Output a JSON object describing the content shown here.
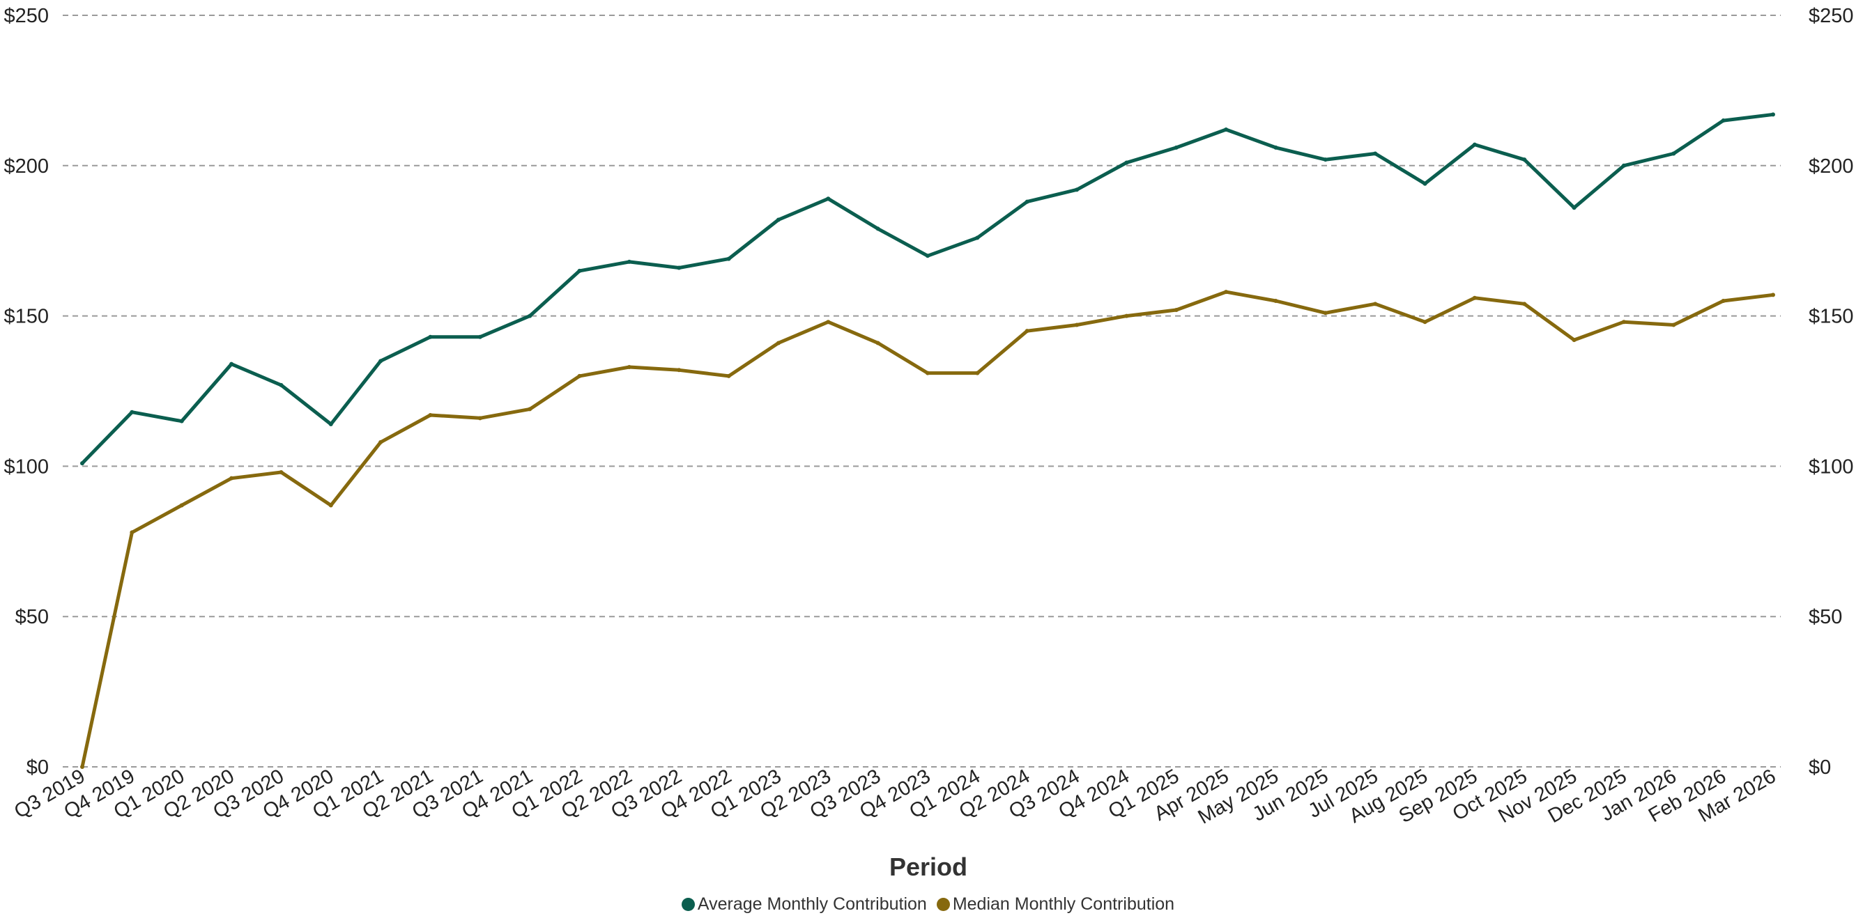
{
  "chart_data": {
    "type": "line",
    "title": "",
    "xlabel": "Period",
    "ylabel": "",
    "ylim": [
      0,
      250
    ],
    "y_ticks": [
      0,
      50,
      100,
      150,
      200,
      250
    ],
    "y_tick_labels": [
      "$0",
      "$50",
      "$100",
      "$150",
      "$200",
      "$250"
    ],
    "grid": "horizontal dashed",
    "legend_position": "bottom-center",
    "secondary_y_axis": true,
    "categories": [
      "Q3 2019",
      "Q4 2019",
      "Q1 2020",
      "Q2 2020",
      "Q3 2020",
      "Q4 2020",
      "Q1 2021",
      "Q2 2021",
      "Q3 2021",
      "Q4 2021",
      "Q1 2022",
      "Q2 2022",
      "Q3 2022",
      "Q4 2022",
      "Q1 2023",
      "Q2 2023",
      "Q3 2023",
      "Q4 2023",
      "Q1 2024",
      "Q2 2024",
      "Q3 2024",
      "Q4 2024",
      "Q1 2025",
      "Apr 2025",
      "May 2025",
      "Jun 2025",
      "Jul 2025",
      "Aug 2025",
      "Sep 2025",
      "Oct 2025",
      "Nov 2025",
      "Dec 2025",
      "Jan 2026",
      "Feb 2026",
      "Mar 2026"
    ],
    "series": [
      {
        "name": "Average Monthly Contribution",
        "color": "#0b5e4f",
        "values": [
          101,
          118,
          115,
          134,
          127,
          114,
          135,
          143,
          143,
          150,
          165,
          168,
          166,
          169,
          182,
          189,
          179,
          170,
          176,
          188,
          192,
          201,
          206,
          212,
          206,
          202,
          204,
          194,
          207,
          202,
          186,
          200,
          204,
          215,
          217
        ]
      },
      {
        "name": "Median Monthly Contribution",
        "color": "#86690e",
        "values": [
          0,
          78,
          87,
          96,
          98,
          87,
          108,
          117,
          116,
          119,
          130,
          133,
          132,
          130,
          141,
          148,
          141,
          131,
          131,
          145,
          147,
          150,
          152,
          158,
          155,
          151,
          154,
          148,
          156,
          154,
          142,
          148,
          147,
          155,
          157
        ]
      }
    ]
  }
}
